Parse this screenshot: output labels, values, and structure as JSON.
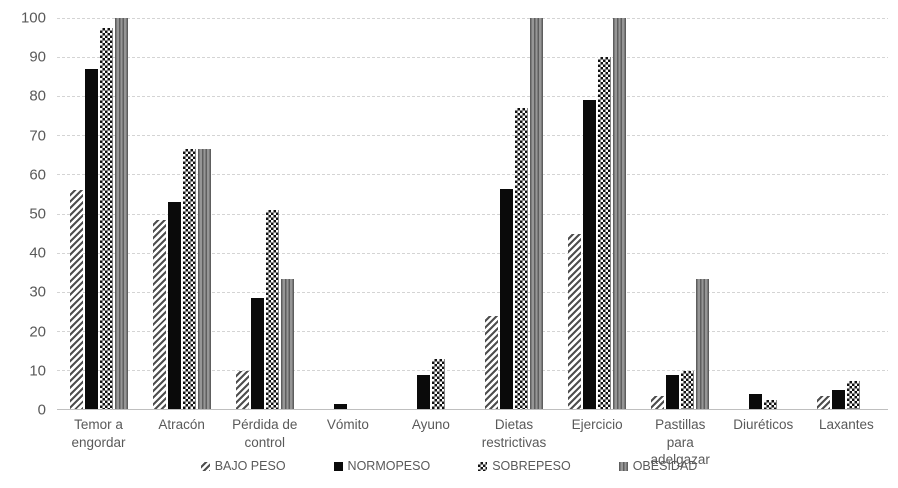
{
  "chart_data": {
    "type": "bar",
    "title": "",
    "xlabel": "",
    "ylabel": "",
    "categories": [
      "Temor a engordar",
      "Atracón",
      "Pérdida de control",
      "Vómito",
      "Ayuno",
      "Dietas restrictivas",
      "Ejercicio",
      "Pastillas para adelgazar",
      "Diuréticos",
      "Laxantes"
    ],
    "series": [
      {
        "name": "BAJO PESO",
        "pattern": "diagonal-hatch",
        "values": [
          56,
          48.5,
          10,
          0,
          0,
          24,
          45,
          3.5,
          0,
          3.5
        ]
      },
      {
        "name": "NORMOPESO",
        "pattern": "solid-black",
        "values": [
          87,
          53,
          28.5,
          1.5,
          9,
          56.5,
          79,
          9,
          4,
          5
        ]
      },
      {
        "name": "SOBREPESO",
        "pattern": "checkerboard",
        "values": [
          97.5,
          66.5,
          51,
          0,
          13,
          77,
          90,
          10,
          2.5,
          7.5
        ]
      },
      {
        "name": "OBESIDAD",
        "pattern": "vertical-stripes-gray",
        "values": [
          100,
          66.5,
          33.3,
          0,
          0,
          100,
          100,
          33.3,
          0,
          0
        ]
      }
    ],
    "ylim": [
      0,
      100
    ],
    "yticks": [
      0,
      10,
      20,
      30,
      40,
      50,
      60,
      70,
      80,
      90,
      100
    ],
    "grid": "horizontal-dashed",
    "legend_position": "bottom",
    "colors": {
      "text": "#595959",
      "gridline": "#d4d4d4",
      "axis_line": "#bfbfbf",
      "bar_black": "#0a0a0a",
      "bar_gray": "#7f7f7f",
      "hatch_line": "#4f4f4f"
    }
  }
}
